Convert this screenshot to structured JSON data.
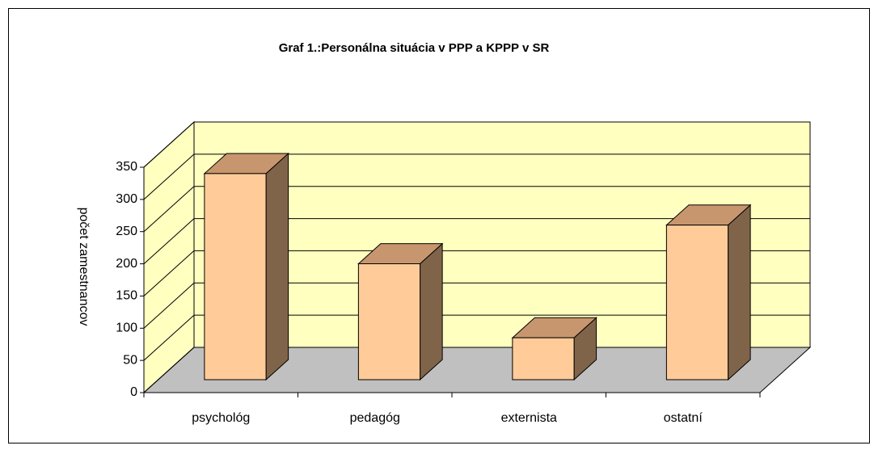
{
  "chart_data": {
    "type": "bar",
    "title": "Graf 1.:Personálna situácia v PPP a KPPP v SR",
    "y_label": "počet zamestnancov",
    "categories": [
      "psychológ",
      "pedagóg",
      "externista",
      "ostatní"
    ],
    "values": [
      320,
      180,
      65,
      240
    ],
    "color": "#ffcc99",
    "ylim": [
      0,
      350
    ],
    "yticks": [
      0,
      50,
      100,
      150,
      200,
      250,
      300,
      350
    ],
    "grid": true
  }
}
